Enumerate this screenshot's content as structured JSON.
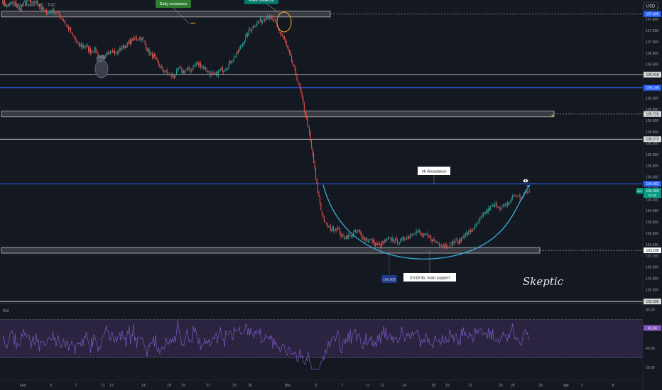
{
  "header": {
    "symbol_text": "U.S. Dollar Index · 4h · TVC",
    "currency_label": "USD"
  },
  "colors": {
    "background": "#141821",
    "bull": "#26a69a",
    "bear": "#ef5350",
    "level_white": "#d9d9d9",
    "level_blue": "#2962ff",
    "curve": "#3ab0d8",
    "rsi_line": "#7e57c2",
    "rsi_band": "#2a2440",
    "grid": "#1e222d",
    "callout_green": "#2e7d32",
    "callout_teal": "#00796b",
    "price_tag_blue": "#2962ff",
    "price_tag_green": "#089981",
    "price_tag_purple": "#7e57c2"
  },
  "chart_data": {
    "type": "candlestick",
    "timeframe": "4h",
    "price_axis": {
      "ticks": [
        "107.600",
        "107.400",
        "107.200",
        "107.000",
        "106.800",
        "106.600",
        "106.400",
        "106.200",
        "106.000",
        "105.800",
        "105.600",
        "105.400",
        "105.200",
        "105.000",
        "104.800",
        "104.600",
        "104.400",
        "104.200",
        "104.000",
        "103.800",
        "103.600",
        "103.400",
        "103.200",
        "103.000",
        "102.800",
        "102.600",
        "102.400"
      ],
      "ylim": [
        102.38,
        107.72
      ]
    },
    "time_axis": {
      "ticks": [
        "Feb",
        "5",
        "7",
        "11",
        "12",
        "14",
        "18",
        "19",
        "21",
        "25",
        "26",
        "Mar",
        "5",
        "7",
        "11",
        "12",
        "14",
        "18",
        "19",
        "21",
        "25",
        "26",
        "28",
        "Apr",
        "3",
        "8"
      ]
    },
    "close_path": [
      107.73,
      107.63,
      107.69,
      107.67,
      107.56,
      107.67,
      107.76,
      107.68,
      107.71,
      107.62,
      107.53,
      107.52,
      107.56,
      107.51,
      107.43,
      107.33,
      107.21,
      107.08,
      106.94,
      106.93,
      106.91,
      106.84,
      106.87,
      106.74,
      106.67,
      106.8,
      106.88,
      106.78,
      106.87,
      106.92,
      106.97,
      107.05,
      107.06,
      107.08,
      106.96,
      106.79,
      106.75,
      106.63,
      106.51,
      106.46,
      106.4,
      106.39,
      106.52,
      106.47,
      106.51,
      106.5,
      106.61,
      106.6,
      106.55,
      106.48,
      106.41,
      106.42,
      106.5,
      106.53,
      106.6,
      106.71,
      106.79,
      106.94,
      107.07,
      107.21,
      107.29,
      107.36,
      107.39,
      107.46,
      107.42,
      107.34,
      107.2,
      107.08,
      106.87,
      106.66,
      106.43,
      106.15,
      105.81,
      105.45,
      105.0,
      104.45,
      104.02,
      103.77,
      103.69,
      103.69,
      103.69,
      103.53,
      103.55,
      103.54,
      103.62,
      103.64,
      103.53,
      103.48,
      103.47,
      103.41,
      103.38,
      103.44,
      103.48,
      103.5,
      103.45,
      103.46,
      103.52,
      103.54,
      103.63,
      103.65,
      103.57,
      103.55,
      103.53,
      103.45,
      103.43,
      103.4,
      103.39,
      103.4,
      103.47,
      103.45,
      103.57,
      103.59,
      103.66,
      103.72,
      103.85,
      103.95,
      104.02,
      104.08,
      104.1,
      104.05,
      104.09,
      104.15,
      104.28,
      104.26,
      104.24,
      104.34,
      104.34
    ],
    "levels": [
      {
        "price": "107.495",
        "kind": "zone"
      },
      {
        "price": "106.418",
        "kind": "white"
      },
      {
        "price": "106.186",
        "kind": "blue"
      },
      {
        "price": "105.720",
        "kind": "zone"
      },
      {
        "price": "105.273",
        "kind": "white"
      },
      {
        "price": "104.482",
        "kind": "blue"
      },
      {
        "price": "103.299",
        "kind": "zone"
      },
      {
        "price": "102.390",
        "kind": "white"
      }
    ],
    "annotations": {
      "daily_resistance": "Daily resistance",
      "fake_breakout": "Fake breakout",
      "resistance_4h": "4h Resistance",
      "fib_support": "0.618 fib, main support",
      "low_tag": "103.303",
      "signature": "Skeptic"
    },
    "price_tags": {
      "dxy_label": "DXY",
      "dxy_price": "104.356",
      "countdown": "53:56"
    },
    "rsi": {
      "label": "RSI",
      "ticks": [
        "80.00",
        "60.00",
        "40.00",
        "20.00"
      ],
      "upper": 70,
      "lower": 30,
      "value": "61.04",
      "ylim": [
        15,
        85
      ]
    }
  }
}
